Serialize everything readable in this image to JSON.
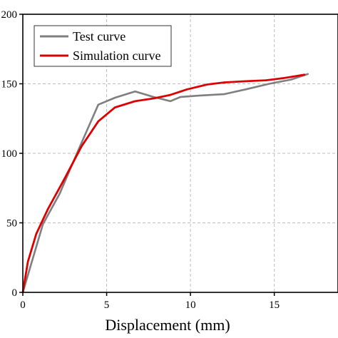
{
  "chart_data": {
    "type": "line",
    "xlabel": "Displacement (mm)",
    "ylabel": "",
    "xlim": [
      0,
      18.8
    ],
    "ylim": [
      0,
      200
    ],
    "x_ticks": [
      0,
      5,
      10,
      15
    ],
    "x_tick_labels": [
      "0",
      "5",
      "10",
      "15"
    ],
    "y_ticks": [
      0,
      50,
      100,
      150,
      200
    ],
    "y_tick_labels": [
      "0",
      "50",
      "100",
      "150",
      "200"
    ],
    "grid": true,
    "legend_position": "top-left",
    "series": [
      {
        "name": "Test curve",
        "color": "#7f7f7f",
        "x": [
          0,
          1.2,
          2.2,
          3.3,
          4.5,
          5.5,
          6.7,
          7.8,
          8.8,
          9.4,
          10.5,
          12.0,
          13.3,
          14.7,
          16.0,
          17.0
        ],
        "y": [
          0,
          49,
          71,
          102,
          135,
          140,
          144.5,
          140.5,
          137.5,
          140.5,
          141.5,
          142.5,
          146,
          150,
          153,
          157
        ]
      },
      {
        "name": "Simulation curve",
        "color": "#dd0000",
        "x": [
          0,
          0.3,
          0.8,
          1.5,
          2.5,
          3.5,
          4.5,
          5.5,
          6.7,
          7.8,
          8.8,
          9.8,
          11.0,
          12.0,
          13.2,
          14.5,
          15.5,
          16.8
        ],
        "y": [
          0,
          22,
          42,
          60,
          82,
          105,
          123,
          133,
          137.5,
          139.5,
          142,
          146,
          149.5,
          151,
          151.8,
          152.5,
          154,
          156.5
        ]
      }
    ]
  }
}
